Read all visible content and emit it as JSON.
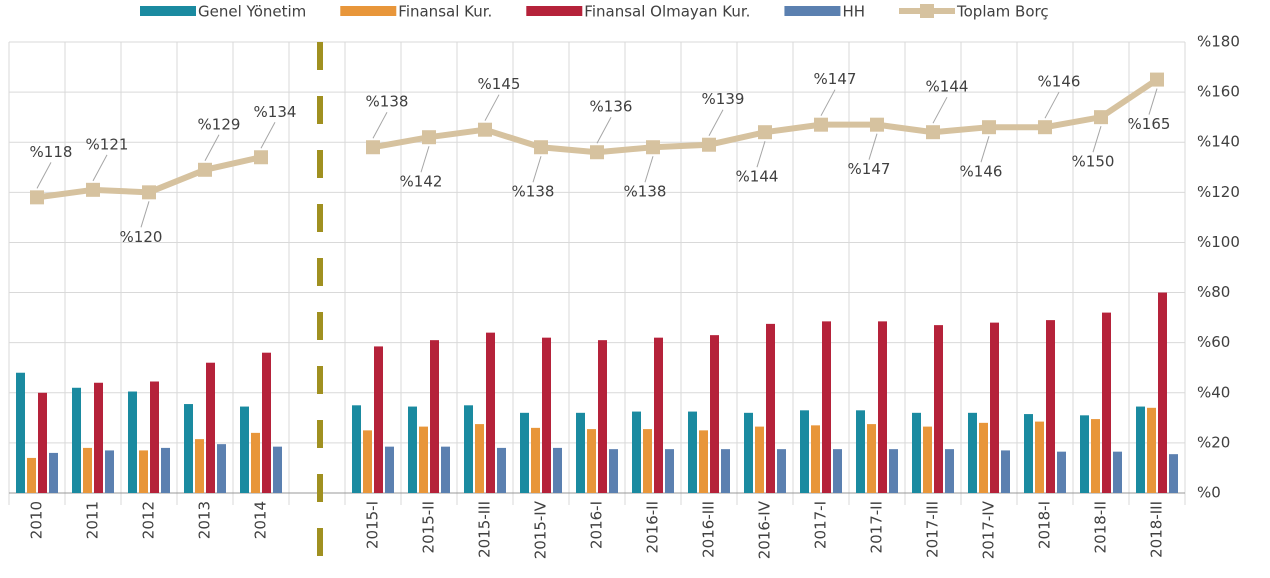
{
  "chart_data": {
    "type": "bar",
    "categories": [
      "2010",
      "2011",
      "2012",
      "2013",
      "2014",
      null,
      "2015-I",
      "2015-II",
      "2015-III",
      "2015-IV",
      "2016-I",
      "2016-II",
      "2016-III",
      "2016-IV",
      "2017-I",
      "2017-II",
      "2017-III",
      "2017-IV",
      "2018-I",
      "2018-II",
      "2018-III"
    ],
    "series": [
      {
        "name": "Genel Yönetim",
        "color": "#1a8aa0",
        "values": [
          48,
          42,
          40.5,
          35.5,
          34.5,
          null,
          35,
          34.5,
          35,
          32,
          32,
          32.5,
          32.5,
          32,
          33,
          33,
          32,
          32,
          31.5,
          31,
          34.5
        ]
      },
      {
        "name": "Finansal Kur.",
        "color": "#e8963a",
        "values": [
          14,
          18,
          17,
          21.5,
          24,
          null,
          25,
          26.5,
          27.5,
          26,
          25.5,
          25.5,
          25,
          26.5,
          27,
          27.5,
          26.5,
          28,
          28.5,
          29.5,
          34
        ]
      },
      {
        "name": "Finansal Olmayan Kur.",
        "color": "#b5223a",
        "values": [
          40,
          44,
          44.5,
          52,
          56,
          null,
          58.5,
          61,
          64,
          62,
          61,
          62,
          63,
          67.5,
          68.5,
          68.5,
          67,
          68,
          69,
          72,
          80
        ]
      },
      {
        "name": "HH",
        "color": "#5b80b0",
        "values": [
          16,
          17,
          18,
          19.5,
          18.5,
          null,
          18.5,
          18.5,
          18,
          18,
          17.5,
          17.5,
          17.5,
          17.5,
          17.5,
          17.5,
          17.5,
          17,
          16.5,
          16.5,
          15.5
        ]
      },
      {
        "name": "Toplam Borç",
        "color": "#d6c29f",
        "type": "line",
        "values": [
          118,
          121,
          120,
          129,
          134,
          null,
          138,
          142,
          145,
          138,
          136,
          138,
          139,
          144,
          147,
          147,
          144,
          146,
          146,
          150,
          165
        ],
        "value_labels": [
          "%118",
          "%121",
          "%120",
          "%129",
          "%134",
          null,
          "%138",
          "%142",
          "%145",
          "%138",
          "%136",
          "%138",
          "%139",
          "%144",
          "%147",
          "%147",
          "%144",
          "%146",
          "%146",
          "%150",
          "%165"
        ]
      }
    ],
    "ylim": [
      0,
      180
    ],
    "yticks": [
      {
        "value": 0,
        "label": "%0"
      },
      {
        "value": 20,
        "label": "%20"
      },
      {
        "value": 40,
        "label": "%40"
      },
      {
        "value": 60,
        "label": "%60"
      },
      {
        "value": 80,
        "label": "%80"
      },
      {
        "value": 100,
        "label": "%100"
      },
      {
        "value": 120,
        "label": "%120"
      },
      {
        "value": 140,
        "label": "%140"
      },
      {
        "value": 160,
        "label": "%160"
      },
      {
        "value": 180,
        "label": "%180"
      }
    ],
    "grid": true,
    "legend": "top"
  }
}
